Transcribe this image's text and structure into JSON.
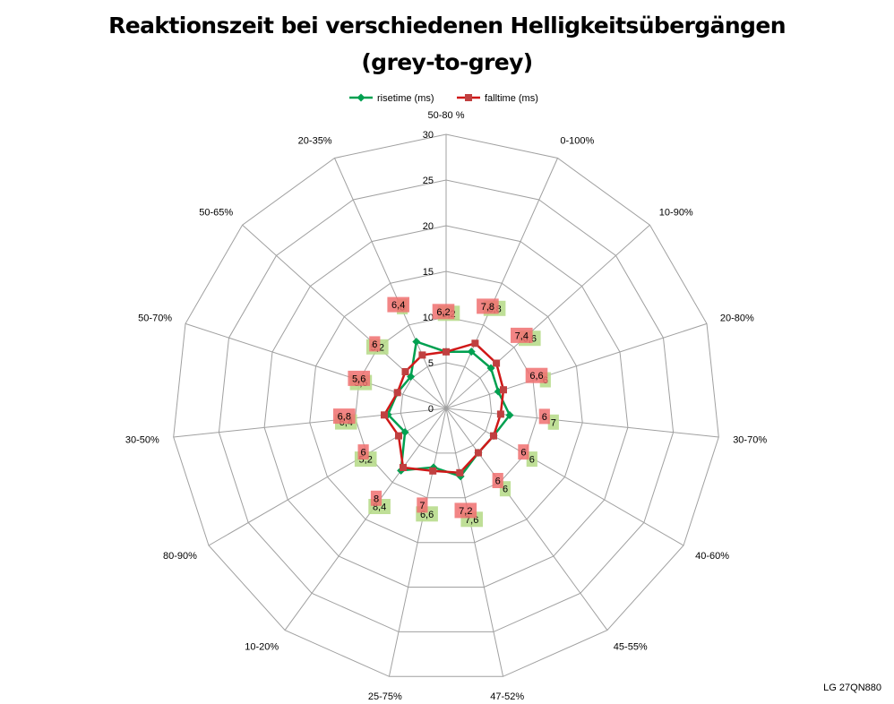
{
  "title_line1": "Reaktionszeit bei verschiedenen Helligkeitsübergängen",
  "title_line2": "(grey-to-grey)",
  "watermark": "LG 27QN880",
  "chart_data": {
    "type": "radar",
    "categories": [
      "50-80 %",
      "0-100%",
      "10-90%",
      "20-80%",
      "30-70%",
      "40-60%",
      "45-55%",
      "47-52%",
      "25-75%",
      "10-20%",
      "80-90%",
      "30-50%",
      "50-70%",
      "50-65%",
      "20-35%"
    ],
    "rlim": [
      0,
      30
    ],
    "ticks": [
      0,
      5,
      10,
      15,
      20,
      25,
      30
    ],
    "legend_position": "top",
    "series": [
      {
        "name": "risetime (ms)",
        "color": "#00a050",
        "label_bg": "#b8dc8c",
        "values": [
          6.2,
          6.8,
          6.6,
          6,
          7,
          6,
          6,
          7.6,
          6.6,
          8.4,
          5.2,
          6.4,
          5.6,
          5.2,
          8
        ],
        "labels": [
          "6,2",
          "6,8",
          "6,6",
          "6",
          "7",
          "6",
          "6",
          "7,6",
          "6,6",
          "8,4",
          "5,2",
          "6,4",
          "5,6",
          "5,2",
          "8"
        ]
      },
      {
        "name": "falltime (ms)",
        "color": "#d01818",
        "label_bg": "#f07070",
        "values": [
          6.2,
          7.8,
          7.4,
          6.6,
          6,
          6,
          6,
          7.2,
          7,
          8,
          6,
          6.8,
          5.6,
          6,
          6.4
        ],
        "labels": [
          "6,2",
          "7,8",
          "7,4",
          "6,6",
          "6",
          "6",
          "6",
          "7,2",
          "7",
          "8",
          "6",
          "6,8",
          "5,6",
          "6",
          "6,4"
        ]
      }
    ]
  }
}
